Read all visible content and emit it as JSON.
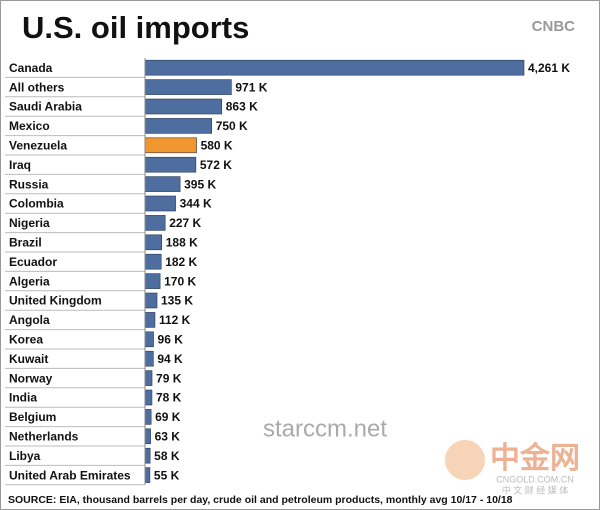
{
  "chart_data": {
    "type": "bar",
    "orientation": "horizontal",
    "title": "U.S. oil imports",
    "logo": "CNBC",
    "categories": [
      "Canada",
      "All others",
      "Saudi Arabia",
      "Mexico",
      "Venezuela",
      "Iraq",
      "Russia",
      "Colombia",
      "Nigeria",
      "Brazil",
      "Ecuador",
      "Algeria",
      "United Kingdom",
      "Angola",
      "Korea",
      "Kuwait",
      "Norway",
      "India",
      "Belgium",
      "Netherlands",
      "Libya",
      "United Arab Emirates"
    ],
    "values": [
      4261,
      971,
      863,
      750,
      580,
      572,
      395,
      344,
      227,
      188,
      182,
      170,
      135,
      112,
      96,
      94,
      79,
      78,
      69,
      63,
      58,
      55
    ],
    "value_labels": [
      "4,261 K",
      "971 K",
      "863 K",
      "750 K",
      "580 K",
      "572 K",
      "395 K",
      "344 K",
      "227 K",
      "188 K",
      "182 K",
      "170 K",
      "135 K",
      "112 K",
      "96 K",
      "94 K",
      "79 K",
      "78 K",
      "69 K",
      "63 K",
      "58 K",
      "55 K"
    ],
    "colors": [
      "#4d6e9f",
      "#4d6e9f",
      "#4d6e9f",
      "#4d6e9f",
      "#f0962f",
      "#4d6e9f",
      "#4d6e9f",
      "#4d6e9f",
      "#4d6e9f",
      "#4d6e9f",
      "#4d6e9f",
      "#4d6e9f",
      "#4d6e9f",
      "#4d6e9f",
      "#4d6e9f",
      "#4d6e9f",
      "#4d6e9f",
      "#4d6e9f",
      "#4d6e9f",
      "#4d6e9f",
      "#4d6e9f",
      "#4d6e9f"
    ],
    "source": "SOURCE: EIA, thousand barrels per day, crude oil and petroleum products, monthly avg 10/17 - 10/18",
    "watermarks": [
      "starccm.net",
      "中金网",
      "CNGOLD.COM.CN",
      "中 文 财 经 媒 体"
    ]
  }
}
